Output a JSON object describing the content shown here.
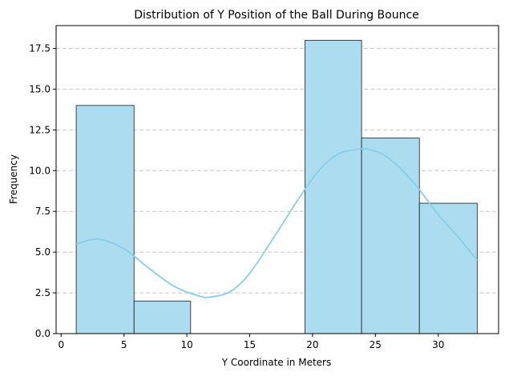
{
  "chart_data": {
    "type": "bar",
    "subtype": "histogram-with-kde",
    "title": "Distribution of Y Position of the Ball During Bounce",
    "xlabel": "Y Coordinate in Meters",
    "ylabel": "Frequency",
    "xlim": [
      -0.4,
      34.8
    ],
    "ylim": [
      0,
      18.9
    ],
    "xticks": [
      0,
      5,
      10,
      15,
      20,
      25,
      30
    ],
    "xtick_labels": [
      "0",
      "5",
      "10",
      "15",
      "20",
      "25",
      "30"
    ],
    "yticks": [
      0,
      2.5,
      5,
      7.5,
      10,
      12.5,
      15,
      17.5
    ],
    "ytick_labels": [
      "0.0",
      "2.5",
      "5.0",
      "7.5",
      "10.0",
      "12.5",
      "15.0",
      "17.5"
    ],
    "grid": "y-dashed",
    "bins": [
      {
        "start": 1.2,
        "end": 5.8,
        "count": 14
      },
      {
        "start": 5.8,
        "end": 10.3,
        "count": 2
      },
      {
        "start": 10.3,
        "end": 14.9,
        "count": 0
      },
      {
        "start": 14.9,
        "end": 19.4,
        "count": 0
      },
      {
        "start": 19.4,
        "end": 23.9,
        "count": 18
      },
      {
        "start": 23.9,
        "end": 28.5,
        "count": 12
      },
      {
        "start": 28.5,
        "end": 33.1,
        "count": 8
      }
    ],
    "kde": {
      "x": [
        1.2,
        3.0,
        5.0,
        7.0,
        9.0,
        11.0,
        12.0,
        13.5,
        15.0,
        17.0,
        19.0,
        20.5,
        22.0,
        23.5,
        24.5,
        26.0,
        28.0,
        30.0,
        31.5,
        33.1
      ],
      "y": [
        5.5,
        5.8,
        5.2,
        4.0,
        2.9,
        2.3,
        2.25,
        2.6,
        3.7,
        6.0,
        8.4,
        10.0,
        11.0,
        11.3,
        11.3,
        10.8,
        9.3,
        7.3,
        6.0,
        4.5
      ]
    },
    "colors": {
      "bar_fill": "#acdcef",
      "bar_edge": "#1a1a1a",
      "kde_line": "#87ceeb",
      "grid": "#c8c8c8"
    }
  }
}
